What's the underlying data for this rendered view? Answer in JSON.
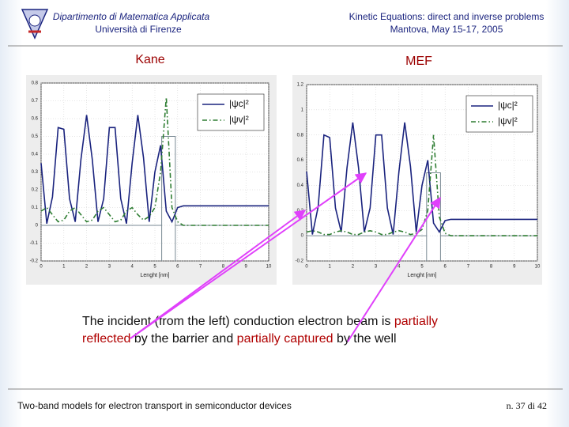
{
  "header": {
    "left": [
      "Dipartimento di Matematica Applicata",
      "Università di Firenze"
    ],
    "right": [
      "Kinetic Equations: direct and inverse problems",
      "Mantova, May 15-17, 2005"
    ]
  },
  "caption": {
    "lines": [
      [
        "The incident (from the left) conduction electron beam is ",
        "partially"
      ],
      [
        "reflected",
        " by the barrier and ",
        "partially captured",
        " by the well"
      ]
    ]
  },
  "footer": {
    "left": "Two-band models for electron transport in semiconductor devices",
    "right": "n. 37 di 42"
  },
  "chart_data": [
    {
      "type": "line",
      "title": "Kane",
      "xlabel": "Lenght [nm]",
      "x": [
        0,
        0.25,
        0.5,
        0.75,
        1,
        1.25,
        1.5,
        1.75,
        2,
        2.25,
        2.5,
        2.75,
        3,
        3.25,
        3.5,
        3.75,
        4,
        4.25,
        4.5,
        4.75,
        5,
        5.25,
        5.5,
        5.75,
        6,
        6.25,
        6.5,
        6.75,
        7,
        7.25,
        7.5,
        7.75,
        8,
        8.25,
        8.5,
        8.75,
        9,
        9.25,
        9.5,
        9.75,
        10
      ],
      "series": [
        {
          "name": "|ψc|²",
          "color": "#1a237e",
          "style": "solid",
          "values": [
            0.35,
            0.01,
            0.16,
            0.55,
            0.54,
            0.15,
            0.02,
            0.37,
            0.62,
            0.37,
            0.02,
            0.15,
            0.55,
            0.55,
            0.15,
            0.01,
            0.35,
            0.62,
            0.38,
            0.02,
            0.3,
            0.45,
            0.08,
            0.02,
            0.1,
            0.11,
            0.11,
            0.11,
            0.11,
            0.11,
            0.11,
            0.11,
            0.11,
            0.11,
            0.11,
            0.11,
            0.11,
            0.11,
            0.11,
            0.11,
            0.11
          ]
        },
        {
          "name": "|ψv|²",
          "color": "#2e7d32",
          "style": "dashdot",
          "values": [
            0.08,
            0.1,
            0.06,
            0.02,
            0.03,
            0.08,
            0.1,
            0.06,
            0.02,
            0.03,
            0.08,
            0.1,
            0.06,
            0.02,
            0.03,
            0.08,
            0.1,
            0.06,
            0.03,
            0.05,
            0.1,
            0.3,
            0.72,
            0.1,
            0.02,
            0,
            0,
            0,
            0,
            0,
            0,
            0,
            0,
            0,
            0,
            0,
            0,
            0,
            0,
            0,
            0
          ]
        }
      ],
      "potential": {
        "color": "#7a8a94",
        "x": [
          0,
          5.3,
          5.3,
          5.3,
          5.9,
          5.9,
          5.9,
          10
        ],
        "values": [
          0,
          0,
          -0.2,
          0.5,
          0.5,
          -0.2,
          0,
          0
        ]
      },
      "xlim": [
        0,
        10
      ],
      "xticks": [
        0,
        1,
        2,
        3,
        4,
        5,
        6,
        7,
        8,
        9,
        10
      ],
      "ylim": [
        -0.2,
        0.8
      ],
      "yticks": [
        -0.2,
        -0.1,
        0,
        0.1,
        0.2,
        0.3,
        0.4,
        0.5,
        0.6,
        0.7,
        0.8
      ],
      "grid": true,
      "legend": "upper right"
    },
    {
      "type": "line",
      "title": "MEF",
      "xlabel": "Lenght [nm]",
      "x": [
        0,
        0.25,
        0.5,
        0.75,
        1,
        1.25,
        1.5,
        1.75,
        2,
        2.25,
        2.5,
        2.75,
        3,
        3.25,
        3.5,
        3.75,
        4,
        4.25,
        4.5,
        4.75,
        5,
        5.25,
        5.5,
        5.75,
        6,
        6.25,
        6.5,
        6.75,
        7,
        7.25,
        7.5,
        7.75,
        8,
        8.25,
        8.5,
        8.75,
        9,
        9.25,
        9.5,
        9.75,
        10
      ],
      "series": [
        {
          "name": "|ψc|²",
          "color": "#1a237e",
          "style": "solid",
          "values": [
            0.51,
            0.01,
            0.23,
            0.8,
            0.78,
            0.22,
            0.03,
            0.54,
            0.9,
            0.54,
            0.03,
            0.22,
            0.8,
            0.8,
            0.22,
            0.01,
            0.51,
            0.9,
            0.55,
            0.03,
            0.4,
            0.6,
            0.1,
            0.03,
            0.12,
            0.13,
            0.13,
            0.13,
            0.13,
            0.13,
            0.13,
            0.13,
            0.13,
            0.13,
            0.13,
            0.13,
            0.13,
            0.13,
            0.13,
            0.13,
            0.13
          ]
        },
        {
          "name": "|ψv|²",
          "color": "#2e7d32",
          "style": "dashdot",
          "values": [
            0.03,
            0.04,
            0.03,
            0.01,
            0.01,
            0.03,
            0.04,
            0.03,
            0.01,
            0.01,
            0.03,
            0.04,
            0.03,
            0.01,
            0.01,
            0.03,
            0.04,
            0.03,
            0.01,
            0.02,
            0.05,
            0.2,
            0.8,
            0.15,
            0.02,
            0,
            0,
            0,
            0,
            0,
            0,
            0,
            0,
            0,
            0,
            0,
            0,
            0,
            0,
            0,
            0
          ]
        }
      ],
      "potential": {
        "color": "#7a8a94",
        "x": [
          0,
          5.2,
          5.2,
          5.2,
          5.8,
          5.8,
          5.8,
          10
        ],
        "values": [
          0,
          0,
          -0.2,
          0.5,
          0.5,
          -0.2,
          0,
          0
        ]
      },
      "xlim": [
        0,
        10
      ],
      "xticks": [
        0,
        1,
        2,
        3,
        4,
        5,
        6,
        7,
        8,
        9,
        10
      ],
      "ylim": [
        -0.2,
        1.2
      ],
      "yticks": [
        -0.2,
        0,
        0.2,
        0.4,
        0.6,
        0.8,
        1,
        1.2
      ],
      "grid": true,
      "legend": "upper right"
    }
  ]
}
